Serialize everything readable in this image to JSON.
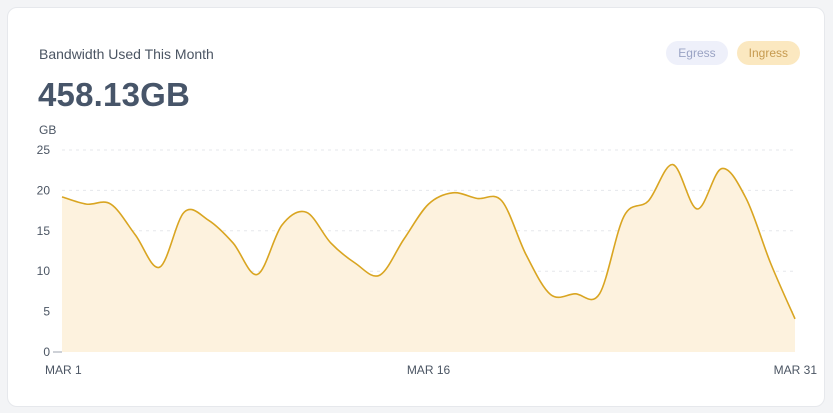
{
  "card": {
    "title": "Bandwidth Used This Month",
    "total": "458.13GB"
  },
  "legend": {
    "egress_label": "Egress",
    "ingress_label": "Ingress"
  },
  "colors": {
    "ingress_line": "#d9a521",
    "ingress_fill": "#fdf2de",
    "egress_pill_bg": "#eef0fa",
    "ingress_pill_bg": "#fbe8c0",
    "grid": "#e5e7eb"
  },
  "chart_data": {
    "type": "area",
    "ylabel": "GB",
    "ylim": [
      0,
      25
    ],
    "yticks": [
      0,
      5,
      10,
      15,
      20,
      25
    ],
    "xlim": [
      1,
      31
    ],
    "xticks": [
      {
        "day": 1,
        "label": "MAR 1"
      },
      {
        "day": 16,
        "label": "MAR 16"
      },
      {
        "day": 31,
        "label": "MAR 31"
      }
    ],
    "grid": true,
    "series": [
      {
        "name": "Ingress",
        "x": [
          1,
          2,
          3,
          4,
          5,
          6,
          7,
          8,
          9,
          10,
          11,
          12,
          13,
          14,
          15,
          16,
          17,
          18,
          19,
          20,
          21,
          22,
          23,
          24,
          25,
          26,
          27,
          28,
          29,
          30,
          31
        ],
        "values": [
          19.2,
          18.3,
          18.3,
          14.5,
          10.5,
          17.3,
          16.3,
          13.5,
          9.6,
          15.7,
          17.3,
          13.5,
          11.0,
          9.5,
          14.0,
          18.3,
          19.7,
          19.0,
          18.7,
          12.0,
          7.1,
          7.2,
          7.2,
          16.8,
          18.7,
          23.2,
          17.7,
          22.7,
          19.0,
          11.0,
          4.1
        ]
      }
    ]
  }
}
